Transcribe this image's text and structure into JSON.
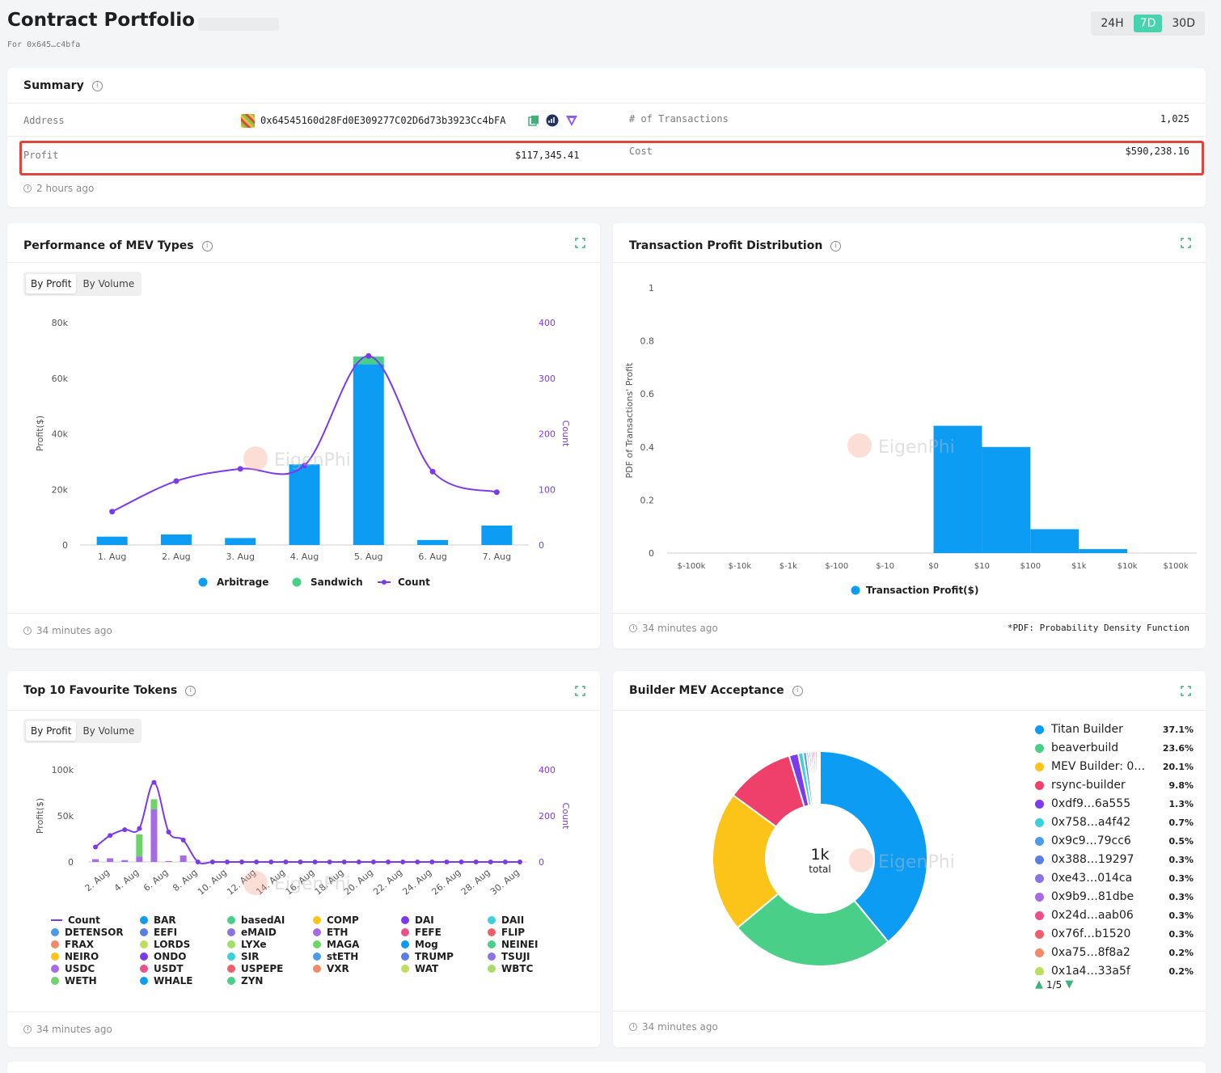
{
  "header": {
    "title": "Contract Portfolio",
    "subtitle": "For 0x645…c4bfa",
    "ranges": [
      "24H",
      "7D",
      "30D"
    ],
    "active_range": "7D"
  },
  "summary": {
    "title": "Summary",
    "address_label": "Address",
    "address": "0x64545160d28Fd0E309277C02D6d73b3923Cc4bFA",
    "tx_label": "# of Transactions",
    "tx_value": "1,025",
    "profit_label": "Profit",
    "profit_value": "$117,345.41",
    "cost_label": "Cost",
    "cost_value": "$590,238.16",
    "updated": "2 hours ago",
    "highlight_color": "#e0443f"
  },
  "mev_types": {
    "title": "Performance of MEV Types",
    "toggle": [
      "By Profit",
      "By Volume"
    ],
    "updated": "34 minutes ago",
    "chart_data": {
      "type": "bar",
      "categories": [
        "1. Aug",
        "2. Aug",
        "3. Aug",
        "4. Aug",
        "5. Aug",
        "6. Aug",
        "7. Aug"
      ],
      "series": [
        {
          "name": "Arbitrage",
          "type": "bar",
          "color": "#0c9cf4",
          "values": [
            3000,
            3800,
            2500,
            29000,
            65000,
            1800,
            7000
          ]
        },
        {
          "name": "Sandwich",
          "type": "bar",
          "color": "#49cf88",
          "values": [
            0,
            0,
            0,
            0,
            2800,
            0,
            0
          ]
        },
        {
          "name": "Count",
          "type": "line",
          "color": "#7c3aed",
          "axis": "right",
          "values": [
            60,
            115,
            137,
            143,
            340,
            132,
            95
          ]
        }
      ],
      "ylabel": "Profit($)",
      "y2label": "Count",
      "ylim": [
        0,
        80000
      ],
      "y2lim": [
        0,
        400
      ],
      "yticks": [
        "0",
        "20k",
        "40k",
        "60k",
        "80k"
      ],
      "y2ticks": [
        "0",
        "100",
        "200",
        "300",
        "400"
      ]
    }
  },
  "profit_dist": {
    "title": "Transaction Profit Distribution",
    "updated": "34 minutes ago",
    "note": "*PDF: Probability Density Function",
    "chart_data": {
      "type": "bar",
      "categories": [
        "$-100k",
        "$-10k",
        "$-1k",
        "$-100",
        "$-10",
        "$0",
        "$10",
        "$100",
        "$1k",
        "$10k",
        "$100k"
      ],
      "series": [
        {
          "name": "Transaction Profit($)",
          "color": "#0c9cf4",
          "values": [
            0,
            0,
            0,
            0,
            0,
            0.48,
            0.4,
            0.09,
            0.015,
            0,
            0
          ]
        }
      ],
      "ylabel": "PDF of Transactions' Profit",
      "ylim": [
        0,
        1
      ],
      "yticks": [
        "0",
        "0.2",
        "0.4",
        "0.6",
        "0.8",
        "1"
      ]
    }
  },
  "tokens": {
    "title": "Top 10 Favourite Tokens",
    "toggle": [
      "By Profit",
      "By Volume"
    ],
    "updated": "34 minutes ago",
    "chart_data": {
      "type": "bar",
      "categories": [
        "2. Aug",
        "4. Aug",
        "6. Aug",
        "8. Aug",
        "10. Aug",
        "12. Aug",
        "14. Aug",
        "16. Aug",
        "18. Aug",
        "20. Aug",
        "22. Aug",
        "24. Aug",
        "26. Aug",
        "28. Aug",
        "30. Aug"
      ],
      "profit_stack": [
        [
          {
            "v": 3000,
            "c": "#a76ce4"
          }
        ],
        [
          {
            "v": 4000,
            "c": "#a76ce4"
          }
        ],
        [
          {
            "v": 2000,
            "c": "#a76ce4"
          }
        ],
        [
          {
            "v": 6000,
            "c": "#a76ce4"
          },
          {
            "v": 24000,
            "c": "#6ed36b"
          }
        ],
        [
          {
            "v": 57000,
            "c": "#a76ce4"
          },
          {
            "v": 11000,
            "c": "#6ed36b"
          }
        ],
        [
          {
            "v": 1000,
            "c": "#a76ce4"
          }
        ],
        [
          {
            "v": 7000,
            "c": "#a76ce4"
          }
        ]
      ],
      "count_values": [
        65,
        115,
        140,
        145,
        345,
        130,
        95,
        0,
        0,
        0,
        0,
        0,
        0,
        0,
        0,
        0,
        0,
        0,
        0,
        0,
        0,
        0,
        0,
        0,
        0,
        0,
        0,
        0,
        0,
        0
      ],
      "ylabel": "Profit($)",
      "y2label": "Count",
      "ylim": [
        0,
        100000
      ],
      "y2lim": [
        0,
        400
      ],
      "yticks": [
        "0",
        "50k",
        "100k"
      ],
      "y2ticks": [
        "0",
        "200",
        "400"
      ]
    },
    "legend": [
      {
        "name": "Count",
        "color": "#7c3aed",
        "line": true
      },
      {
        "name": "BAR",
        "color": "#0c9cf4"
      },
      {
        "name": "basedAI",
        "color": "#49cf88"
      },
      {
        "name": "COMP",
        "color": "#fcc419"
      },
      {
        "name": "DAI",
        "color": "#7c3aed"
      },
      {
        "name": "DAII",
        "color": "#3ccfdc"
      },
      {
        "name": "DETENSOR",
        "color": "#4c9be8"
      },
      {
        "name": "EEFI",
        "color": "#5a7fe0"
      },
      {
        "name": "eMAID",
        "color": "#8b74e2"
      },
      {
        "name": "ETH",
        "color": "#a76ce4"
      },
      {
        "name": "FEFE",
        "color": "#ec4f8a"
      },
      {
        "name": "FLIP",
        "color": "#ef5f6b"
      },
      {
        "name": "FRAX",
        "color": "#ef8a6b"
      },
      {
        "name": "LORDS",
        "color": "#bede5f"
      },
      {
        "name": "LYXe",
        "color": "#a6dd6a"
      },
      {
        "name": "MAGA",
        "color": "#6ed36b"
      },
      {
        "name": "Mog",
        "color": "#0c9cf4"
      },
      {
        "name": "NEINEI",
        "color": "#49cf88"
      },
      {
        "name": "NEIRO",
        "color": "#fcc419"
      },
      {
        "name": "ONDO",
        "color": "#7c3aed"
      },
      {
        "name": "SIR",
        "color": "#3ccfdc"
      },
      {
        "name": "stETH",
        "color": "#4c9be8"
      },
      {
        "name": "TRUMP",
        "color": "#5a7fe0"
      },
      {
        "name": "TSUJI",
        "color": "#8b74e2"
      },
      {
        "name": "USDC",
        "color": "#a76ce4"
      },
      {
        "name": "USDT",
        "color": "#ec4f8a"
      },
      {
        "name": "USPEPE",
        "color": "#ef5f6b"
      },
      {
        "name": "VXR",
        "color": "#ef8a6b"
      },
      {
        "name": "WAT",
        "color": "#bede5f"
      },
      {
        "name": "WBTC",
        "color": "#a6dd6a"
      },
      {
        "name": "WETH",
        "color": "#6ed36b"
      },
      {
        "name": "WHALE",
        "color": "#0c9cf4"
      },
      {
        "name": "ZYN",
        "color": "#49cf88"
      }
    ]
  },
  "builders": {
    "title": "Builder MEV Acceptance",
    "updated": "34 minutes ago",
    "center_value": "1k",
    "center_label": "total",
    "pager": "1/5",
    "chart_data": {
      "type": "pie",
      "slices": [
        {
          "name": "Titan Builder",
          "value": 37.1,
          "label": "37.1%",
          "color": "#0c9cf4"
        },
        {
          "name": "beaverbuild",
          "value": 23.6,
          "label": "23.6%",
          "color": "#49cf88"
        },
        {
          "name": "MEV Builder: 0…",
          "value": 20.1,
          "label": "20.1%",
          "color": "#fcc419"
        },
        {
          "name": "rsync-builder",
          "value": 9.8,
          "label": "9.8%",
          "color": "#ef3f6b"
        },
        {
          "name": "0xdf9…6a555",
          "value": 1.3,
          "label": "1.3%",
          "color": "#7c3aed"
        },
        {
          "name": "0x758…a4f42",
          "value": 0.7,
          "label": "0.7%",
          "color": "#3ccfdc"
        },
        {
          "name": "0x9c9…79cc6",
          "value": 0.5,
          "label": "0.5%",
          "color": "#4c9be8"
        },
        {
          "name": "0x388…19297",
          "value": 0.3,
          "label": "0.3%",
          "color": "#5a7fe0"
        },
        {
          "name": "0xe43…014ca",
          "value": 0.3,
          "label": "0.3%",
          "color": "#8b74e2"
        },
        {
          "name": "0x9b9…81dbe",
          "value": 0.3,
          "label": "0.3%",
          "color": "#a76ce4"
        },
        {
          "name": "0x24d…aab06",
          "value": 0.3,
          "label": "0.3%",
          "color": "#ec4f8a"
        },
        {
          "name": "0x76f…b1520",
          "value": 0.3,
          "label": "0.3%",
          "color": "#ef5f6b"
        },
        {
          "name": "0xa75…8f8a2",
          "value": 0.2,
          "label": "0.2%",
          "color": "#ef8a6b"
        },
        {
          "name": "0x1a4…33a5f",
          "value": 0.2,
          "label": "0.2%",
          "color": "#bede5f"
        }
      ]
    }
  }
}
